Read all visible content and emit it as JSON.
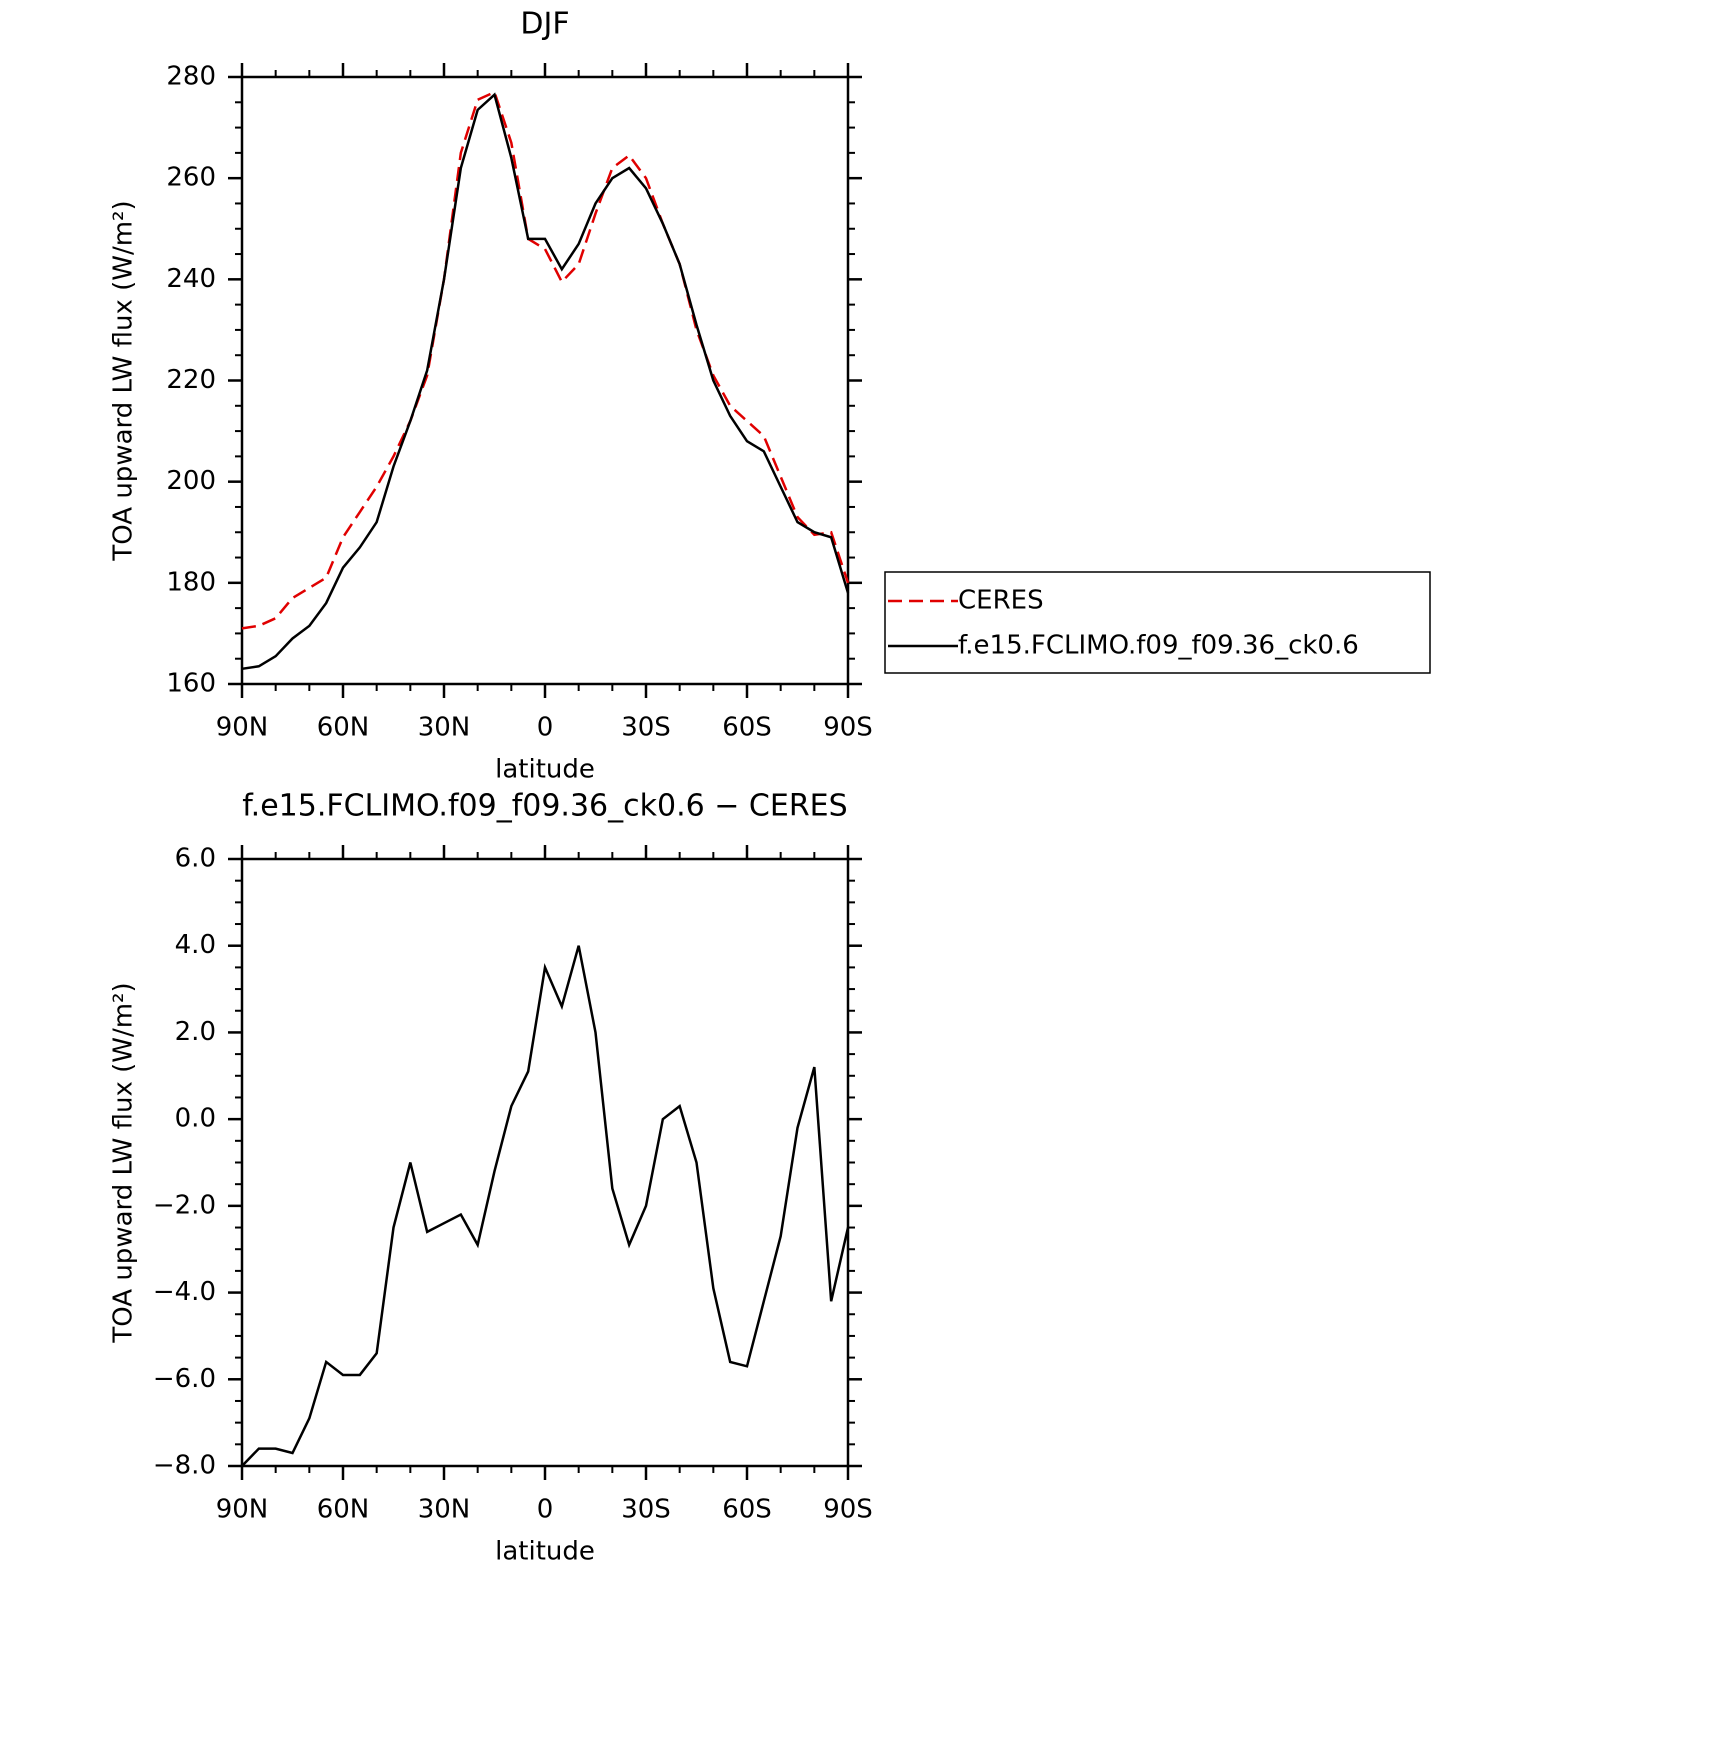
{
  "chart_data": [
    {
      "type": "line",
      "title": "DJF",
      "xlabel": "latitude",
      "ylabel": "TOA upward LW flux (W/m²)",
      "x": [
        90,
        85,
        80,
        75,
        70,
        65,
        60,
        55,
        50,
        45,
        40,
        35,
        30,
        25,
        20,
        15,
        10,
        5,
        0,
        -5,
        -10,
        -15,
        -20,
        -25,
        -30,
        -35,
        -40,
        -45,
        -50,
        -55,
        -60,
        -65,
        -70,
        -75,
        -80,
        -85,
        -90
      ],
      "xlim": [
        90,
        -90
      ],
      "xticks": [
        {
          "value": 90,
          "label": "90N"
        },
        {
          "value": 60,
          "label": "60N"
        },
        {
          "value": 30,
          "label": "30N"
        },
        0,
        {
          "value": -30,
          "label": "30S"
        },
        {
          "value": -60,
          "label": "60S"
        },
        {
          "value": -90,
          "label": "90S"
        }
      ],
      "ylim": [
        160,
        280
      ],
      "yticks": [
        160,
        180,
        200,
        220,
        240,
        260,
        280
      ],
      "legend": "right",
      "series": [
        {
          "name": "CERES",
          "color": "#e00000",
          "dash": true,
          "values": [
            171,
            171.5,
            173,
            177,
            179,
            181,
            189,
            194,
            199,
            205,
            212,
            221,
            240,
            265,
            275.5,
            277,
            267,
            248,
            246,
            239.5,
            243,
            253,
            262,
            264.5,
            260,
            251,
            243,
            230,
            221,
            215,
            212,
            209,
            201,
            193,
            189.5,
            190,
            180
          ]
        },
        {
          "name": "f.e15.FCLIMO.f09_f09.36_ck0.6",
          "color": "#000000",
          "dash": false,
          "values": [
            163,
            163.5,
            165.5,
            169,
            171.5,
            176,
            183,
            187,
            192,
            203,
            212,
            222,
            240,
            262,
            273.5,
            276.5,
            264,
            248,
            248,
            242,
            247,
            255,
            260,
            262,
            258,
            251,
            243,
            231,
            220,
            213,
            208,
            206,
            199,
            192,
            190,
            189,
            178
          ]
        }
      ]
    },
    {
      "type": "line",
      "title": "f.e15.FCLIMO.f09_f09.36_ck0.6 − CERES",
      "xlabel": "latitude",
      "ylabel": "TOA upward LW flux (W/m²)",
      "x": [
        90,
        85,
        80,
        75,
        70,
        65,
        60,
        55,
        50,
        45,
        40,
        35,
        30,
        25,
        20,
        15,
        10,
        5,
        0,
        -5,
        -10,
        -15,
        -20,
        -25,
        -30,
        -35,
        -40,
        -45,
        -50,
        -55,
        -60,
        -65,
        -70,
        -75,
        -80,
        -85,
        -90
      ],
      "xlim": [
        90,
        -90
      ],
      "xticks": [
        {
          "value": 90,
          "label": "90N"
        },
        {
          "value": 60,
          "label": "60N"
        },
        {
          "value": 30,
          "label": "30N"
        },
        0,
        {
          "value": -30,
          "label": "30S"
        },
        {
          "value": -60,
          "label": "60S"
        },
        {
          "value": -90,
          "label": "90S"
        }
      ],
      "ylim": [
        -8,
        6
      ],
      "yticks": [
        {
          "value": -8,
          "label": "−8.0"
        },
        {
          "value": -6,
          "label": "−6.0"
        },
        {
          "value": -4,
          "label": "−4.0"
        },
        {
          "value": -2,
          "label": "−2.0"
        },
        {
          "value": 0,
          "label": "0.0"
        },
        {
          "value": 2,
          "label": "2.0"
        },
        {
          "value": 4,
          "label": "4.0"
        },
        {
          "value": 6,
          "label": "6.0"
        }
      ],
      "series": [
        {
          "color": "#000000",
          "dash": false,
          "values": [
            -8.0,
            -7.6,
            -7.6,
            -7.7,
            -6.9,
            -5.6,
            -5.9,
            -5.9,
            -5.4,
            -2.5,
            -1.0,
            -2.6,
            -2.4,
            -2.2,
            -2.9,
            -1.2,
            0.3,
            1.1,
            3.5,
            2.6,
            4.0,
            2.0,
            -1.6,
            -2.9,
            -2.0,
            0.0,
            0.3,
            -1.0,
            -3.9,
            -5.6,
            -5.7,
            -4.2,
            -2.7,
            -0.2,
            1.2,
            -4.2,
            -2.5
          ]
        }
      ]
    }
  ]
}
